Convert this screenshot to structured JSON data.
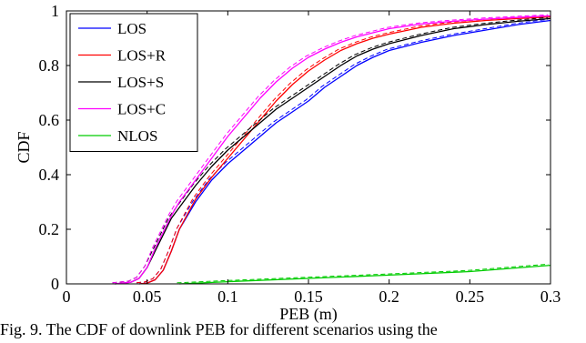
{
  "chart_data": {
    "type": "line",
    "xlabel": "PEB (m)",
    "ylabel": "CDF",
    "xlim": [
      0,
      0.3
    ],
    "ylim": [
      0,
      1
    ],
    "x_ticks": [
      "0",
      "0.05",
      "0.1",
      "0.15",
      "0.2",
      "0.25",
      "0.3"
    ],
    "y_ticks": [
      "0",
      "0.2",
      "0.4",
      "0.6",
      "0.8",
      "1"
    ],
    "grid": false,
    "legend_position": "top-left",
    "series": [
      {
        "name": "LOS",
        "color": "#0000ff",
        "x": [
          0.045,
          0.05,
          0.055,
          0.06,
          0.065,
          0.07,
          0.08,
          0.09,
          0.1,
          0.11,
          0.12,
          0.13,
          0.14,
          0.15,
          0.16,
          0.17,
          0.18,
          0.19,
          0.2,
          0.22,
          0.24,
          0.26,
          0.28,
          0.3
        ],
        "y": [
          0.0,
          0.003,
          0.015,
          0.05,
          0.12,
          0.2,
          0.3,
          0.38,
          0.44,
          0.49,
          0.54,
          0.59,
          0.63,
          0.67,
          0.72,
          0.76,
          0.8,
          0.83,
          0.855,
          0.885,
          0.91,
          0.93,
          0.95,
          0.965
        ]
      },
      {
        "name": "LOS+R",
        "color": "#ff0000",
        "x": [
          0.045,
          0.05,
          0.055,
          0.06,
          0.065,
          0.07,
          0.08,
          0.09,
          0.1,
          0.11,
          0.12,
          0.13,
          0.14,
          0.15,
          0.16,
          0.17,
          0.18,
          0.19,
          0.2,
          0.22,
          0.24,
          0.26,
          0.28,
          0.3
        ],
        "y": [
          0.0,
          0.003,
          0.015,
          0.05,
          0.12,
          0.2,
          0.31,
          0.39,
          0.46,
          0.53,
          0.6,
          0.67,
          0.73,
          0.78,
          0.82,
          0.855,
          0.88,
          0.9,
          0.915,
          0.94,
          0.955,
          0.965,
          0.972,
          0.978
        ]
      },
      {
        "name": "LOS+S",
        "color": "#000000",
        "x": [
          0.03,
          0.04,
          0.045,
          0.05,
          0.055,
          0.06,
          0.065,
          0.07,
          0.08,
          0.09,
          0.1,
          0.11,
          0.12,
          0.13,
          0.14,
          0.15,
          0.16,
          0.17,
          0.18,
          0.19,
          0.2,
          0.22,
          0.24,
          0.26,
          0.28,
          0.3
        ],
        "y": [
          0.0,
          0.006,
          0.02,
          0.06,
          0.12,
          0.18,
          0.24,
          0.28,
          0.36,
          0.43,
          0.49,
          0.54,
          0.59,
          0.64,
          0.68,
          0.72,
          0.76,
          0.8,
          0.835,
          0.86,
          0.88,
          0.91,
          0.935,
          0.95,
          0.962,
          0.972
        ]
      },
      {
        "name": "LOS+C",
        "color": "#ff00ff",
        "x": [
          0.03,
          0.04,
          0.045,
          0.05,
          0.055,
          0.06,
          0.065,
          0.07,
          0.08,
          0.09,
          0.1,
          0.11,
          0.12,
          0.13,
          0.14,
          0.15,
          0.16,
          0.17,
          0.18,
          0.19,
          0.2,
          0.22,
          0.24,
          0.26,
          0.28,
          0.3
        ],
        "y": [
          0.0,
          0.006,
          0.02,
          0.06,
          0.13,
          0.19,
          0.25,
          0.3,
          0.38,
          0.46,
          0.54,
          0.61,
          0.68,
          0.74,
          0.79,
          0.83,
          0.86,
          0.885,
          0.905,
          0.92,
          0.935,
          0.952,
          0.962,
          0.97,
          0.976,
          0.982
        ]
      },
      {
        "name": "NLOS",
        "color": "#00cc00",
        "x": [
          0.07,
          0.1,
          0.15,
          0.2,
          0.25,
          0.3
        ],
        "y": [
          0.0,
          0.008,
          0.02,
          0.032,
          0.045,
          0.068
        ]
      }
    ]
  },
  "caption": "Fig. 9.   The CDF of downlink PEB for different scenarios using the"
}
